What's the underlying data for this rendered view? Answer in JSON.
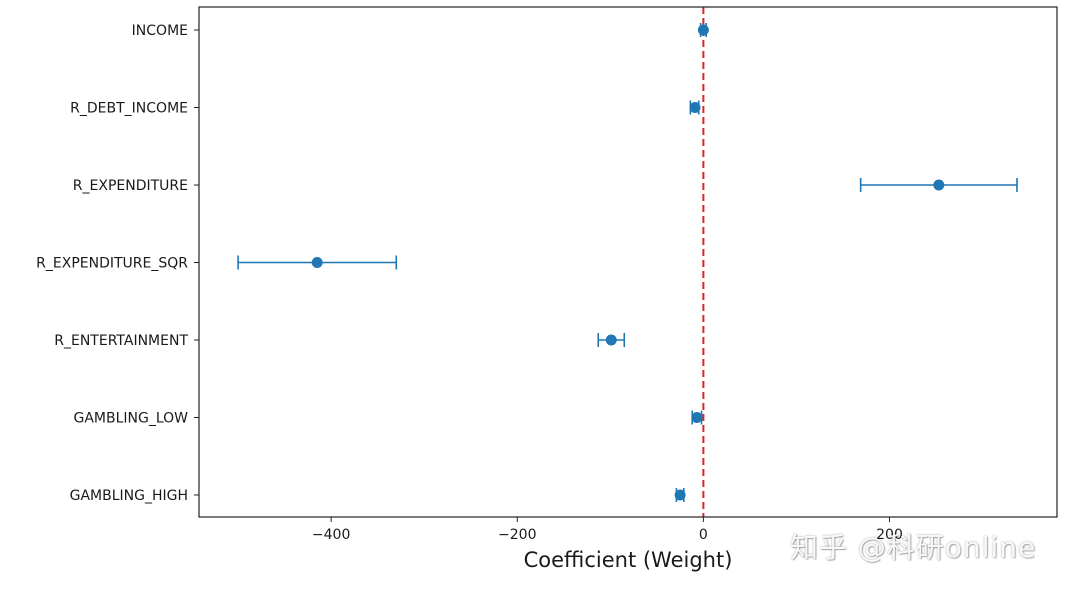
{
  "chart_data": {
    "type": "scatter",
    "subtype": "coefficient-errorbar",
    "title": "",
    "xlabel": "Coefficient (Weight)",
    "ylabel": "",
    "xlim": [
      -542,
      380
    ],
    "x_ticks": [
      -400,
      -200,
      0,
      200
    ],
    "x_tick_labels": [
      "−400",
      "−200",
      "0",
      "200"
    ],
    "reference_line": {
      "x": 0,
      "style": "dashed",
      "color": "#d62728"
    },
    "point_color": "#1f77b4",
    "grid": false,
    "categories": [
      "INCOME",
      "R_DEBT_INCOME",
      "R_EXPENDITURE",
      "R_EXPENDITURE_SQR",
      "R_ENTERTAINMENT",
      "GAMBLING_LOW",
      "GAMBLING_HIGH"
    ],
    "points": [
      {
        "label": "INCOME",
        "value": 0,
        "lower": -3,
        "upper": 3
      },
      {
        "label": "R_DEBT_INCOME",
        "value": -9,
        "lower": -14,
        "upper": -5
      },
      {
        "label": "R_EXPENDITURE",
        "value": 253,
        "lower": 169,
        "upper": 337
      },
      {
        "label": "R_EXPENDITURE_SQR",
        "value": -415,
        "lower": -500,
        "upper": -330
      },
      {
        "label": "R_ENTERTAINMENT",
        "value": -99,
        "lower": -113,
        "upper": -85
      },
      {
        "label": "GAMBLING_LOW",
        "value": -7,
        "lower": -12,
        "upper": -2
      },
      {
        "label": "GAMBLING_HIGH",
        "value": -25,
        "lower": -29,
        "upper": -21
      }
    ]
  },
  "watermark": {
    "text": "知乎 @科研online"
  }
}
